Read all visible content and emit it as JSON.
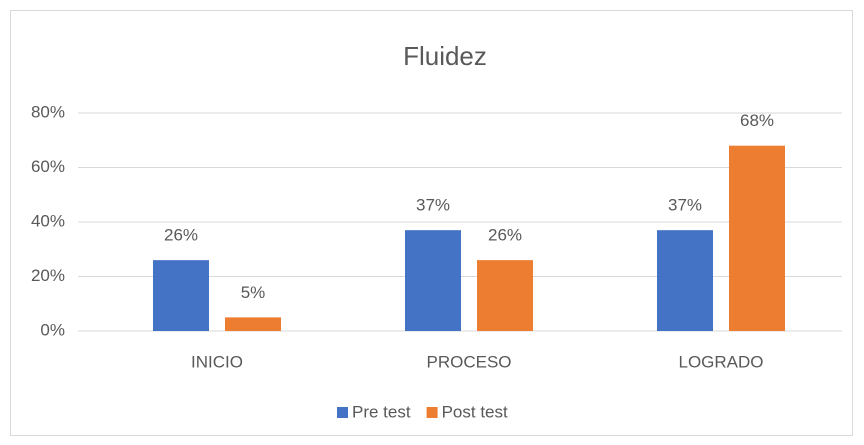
{
  "chart_data": {
    "type": "bar",
    "title": "Fluidez",
    "categories": [
      "INICIO",
      "PROCESO",
      "LOGRADO"
    ],
    "series": [
      {
        "name": "Pre test",
        "color": "#4472c4",
        "values": [
          26,
          37,
          37
        ],
        "value_labels": [
          "26%",
          "37%",
          "37%"
        ]
      },
      {
        "name": "Post test",
        "color": "#ed7d31",
        "values": [
          5,
          26,
          68
        ],
        "value_labels": [
          "5%",
          "26%",
          "68%"
        ]
      }
    ],
    "ylim": [
      0,
      80
    ],
    "yticks": [
      {
        "value": 0,
        "label": "0%"
      },
      {
        "value": 20,
        "label": "20%"
      },
      {
        "value": 40,
        "label": "40%"
      },
      {
        "value": 60,
        "label": "60%"
      },
      {
        "value": 80,
        "label": "80%"
      }
    ],
    "grid": true,
    "legend": "bottom"
  }
}
